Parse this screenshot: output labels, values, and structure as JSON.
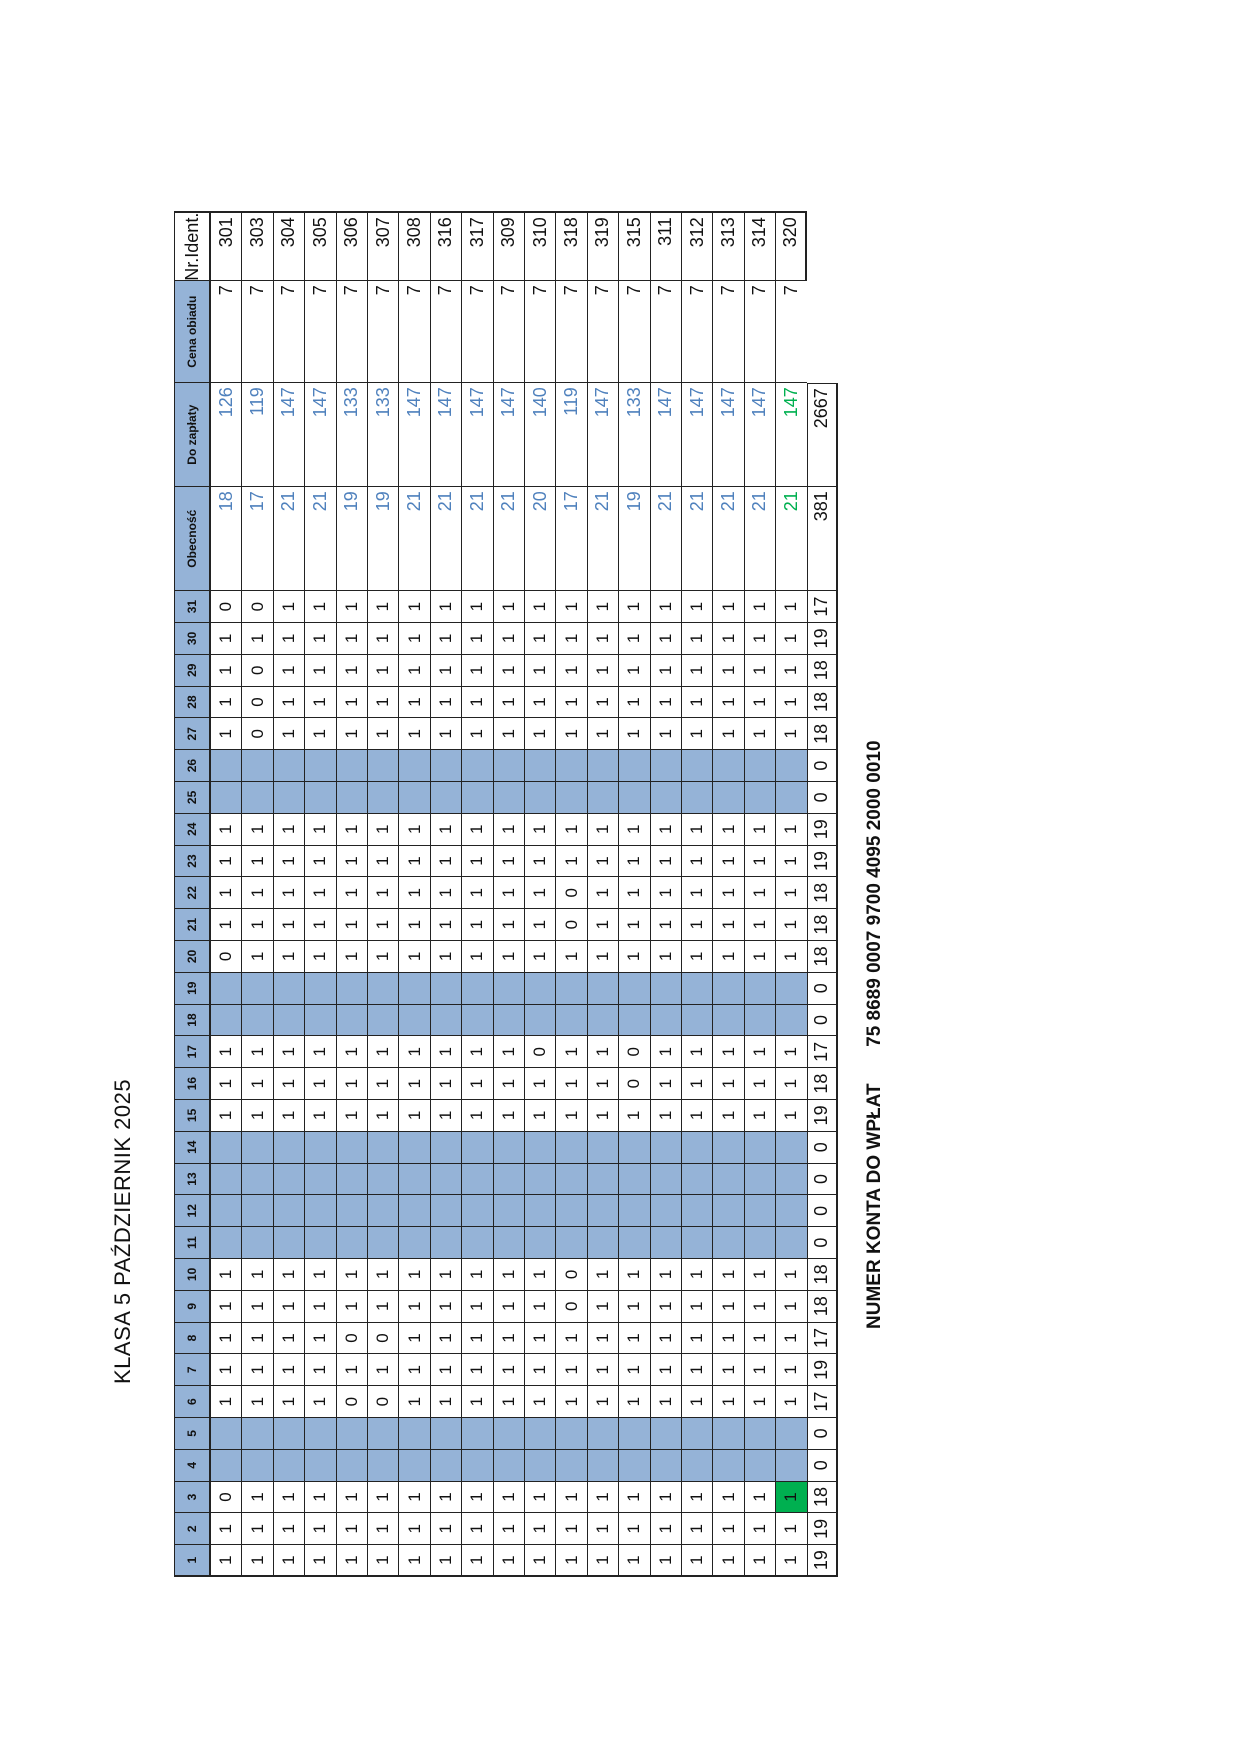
{
  "document": {
    "title": "KLASA 5 PAŹDZIERNIK 2025",
    "account_label": "NUMER KONTA  DO WPŁAT",
    "account_number": "75 8689 0007 9700 4095 2000 0010"
  },
  "table": {
    "day_headers": [
      "1",
      "2",
      "3",
      "4",
      "5",
      "6",
      "7",
      "8",
      "9",
      "10",
      "11",
      "12",
      "13",
      "14",
      "15",
      "16",
      "17",
      "18",
      "19",
      "20",
      "21",
      "22",
      "23",
      "24",
      "25",
      "26",
      "27",
      "28",
      "29",
      "30",
      "31"
    ],
    "extra_headers": {
      "attendance": "Obecność",
      "to_pay": "Do zapłaty",
      "meal_price": "Cena obiadu",
      "id": "Nr.Ident."
    },
    "weekend_days": [
      4,
      5,
      11,
      12,
      13,
      14,
      18,
      19,
      25,
      26
    ],
    "header_color": "#95b3d7",
    "weekend_color": "#95b3d7",
    "highlight_green": "#00b050",
    "value_blue": "#4f81bd",
    "value_green": "#00b050",
    "rows": [
      {
        "days": [
          "1",
          "1",
          "0",
          "",
          "",
          "1",
          "1",
          "1",
          "1",
          "1",
          "",
          "",
          "",
          "",
          "1",
          "1",
          "1",
          "",
          "",
          "0",
          "1",
          "1",
          "1",
          "1",
          "",
          "",
          "1",
          "1",
          "1",
          "1",
          "0"
        ],
        "attendance": "18",
        "to_pay": "126",
        "meal_price": "7",
        "id": "301"
      },
      {
        "days": [
          "1",
          "1",
          "1",
          "",
          "",
          "1",
          "1",
          "1",
          "1",
          "1",
          "",
          "",
          "",
          "",
          "1",
          "1",
          "1",
          "",
          "",
          "1",
          "1",
          "1",
          "1",
          "1",
          "",
          "",
          "0",
          "0",
          "0",
          "1",
          "0"
        ],
        "attendance": "17",
        "to_pay": "119",
        "meal_price": "7",
        "id": "303"
      },
      {
        "days": [
          "1",
          "1",
          "1",
          "",
          "",
          "1",
          "1",
          "1",
          "1",
          "1",
          "",
          "",
          "",
          "",
          "1",
          "1",
          "1",
          "",
          "",
          "1",
          "1",
          "1",
          "1",
          "1",
          "",
          "",
          "1",
          "1",
          "1",
          "1",
          "1"
        ],
        "attendance": "21",
        "to_pay": "147",
        "meal_price": "7",
        "id": "304"
      },
      {
        "days": [
          "1",
          "1",
          "1",
          "",
          "",
          "1",
          "1",
          "1",
          "1",
          "1",
          "",
          "",
          "",
          "",
          "1",
          "1",
          "1",
          "",
          "",
          "1",
          "1",
          "1",
          "1",
          "1",
          "",
          "",
          "1",
          "1",
          "1",
          "1",
          "1"
        ],
        "attendance": "21",
        "to_pay": "147",
        "meal_price": "7",
        "id": "305"
      },
      {
        "days": [
          "1",
          "1",
          "1",
          "",
          "",
          "0",
          "1",
          "0",
          "1",
          "1",
          "",
          "",
          "",
          "",
          "1",
          "1",
          "1",
          "",
          "",
          "1",
          "1",
          "1",
          "1",
          "1",
          "",
          "",
          "1",
          "1",
          "1",
          "1",
          "1"
        ],
        "attendance": "19",
        "to_pay": "133",
        "meal_price": "7",
        "id": "306"
      },
      {
        "days": [
          "1",
          "1",
          "1",
          "",
          "",
          "0",
          "1",
          "0",
          "1",
          "1",
          "",
          "",
          "",
          "",
          "1",
          "1",
          "1",
          "",
          "",
          "1",
          "1",
          "1",
          "1",
          "1",
          "",
          "",
          "1",
          "1",
          "1",
          "1",
          "1"
        ],
        "attendance": "19",
        "to_pay": "133",
        "meal_price": "7",
        "id": "307"
      },
      {
        "days": [
          "1",
          "1",
          "1",
          "",
          "",
          "1",
          "1",
          "1",
          "1",
          "1",
          "",
          "",
          "",
          "",
          "1",
          "1",
          "1",
          "",
          "",
          "1",
          "1",
          "1",
          "1",
          "1",
          "",
          "",
          "1",
          "1",
          "1",
          "1",
          "1"
        ],
        "attendance": "21",
        "to_pay": "147",
        "meal_price": "7",
        "id": "308"
      },
      {
        "days": [
          "1",
          "1",
          "1",
          "",
          "",
          "1",
          "1",
          "1",
          "1",
          "1",
          "",
          "",
          "",
          "",
          "1",
          "1",
          "1",
          "",
          "",
          "1",
          "1",
          "1",
          "1",
          "1",
          "",
          "",
          "1",
          "1",
          "1",
          "1",
          "1"
        ],
        "attendance": "21",
        "to_pay": "147",
        "meal_price": "7",
        "id": "316"
      },
      {
        "days": [
          "1",
          "1",
          "1",
          "",
          "",
          "1",
          "1",
          "1",
          "1",
          "1",
          "",
          "",
          "",
          "",
          "1",
          "1",
          "1",
          "",
          "",
          "1",
          "1",
          "1",
          "1",
          "1",
          "",
          "",
          "1",
          "1",
          "1",
          "1",
          "1"
        ],
        "attendance": "21",
        "to_pay": "147",
        "meal_price": "7",
        "id": "317"
      },
      {
        "days": [
          "1",
          "1",
          "1",
          "",
          "",
          "1",
          "1",
          "1",
          "1",
          "1",
          "",
          "",
          "",
          "",
          "1",
          "1",
          "1",
          "",
          "",
          "1",
          "1",
          "1",
          "1",
          "1",
          "",
          "",
          "1",
          "1",
          "1",
          "1",
          "1"
        ],
        "attendance": "21",
        "to_pay": "147",
        "meal_price": "7",
        "id": "309"
      },
      {
        "days": [
          "1",
          "1",
          "1",
          "",
          "",
          "1",
          "1",
          "1",
          "1",
          "1",
          "",
          "",
          "",
          "",
          "1",
          "1",
          "0",
          "",
          "",
          "1",
          "1",
          "1",
          "1",
          "1",
          "",
          "",
          "1",
          "1",
          "1",
          "1",
          "1"
        ],
        "attendance": "20",
        "to_pay": "140",
        "meal_price": "7",
        "id": "310"
      },
      {
        "days": [
          "1",
          "1",
          "1",
          "",
          "",
          "1",
          "1",
          "1",
          "0",
          "0",
          "",
          "",
          "",
          "",
          "1",
          "1",
          "1",
          "",
          "",
          "1",
          "0",
          "0",
          "1",
          "1",
          "",
          "",
          "1",
          "1",
          "1",
          "1",
          "1"
        ],
        "attendance": "17",
        "to_pay": "119",
        "meal_price": "7",
        "id": "318"
      },
      {
        "days": [
          "1",
          "1",
          "1",
          "",
          "",
          "1",
          "1",
          "1",
          "1",
          "1",
          "",
          "",
          "",
          "",
          "1",
          "1",
          "1",
          "",
          "",
          "1",
          "1",
          "1",
          "1",
          "1",
          "",
          "",
          "1",
          "1",
          "1",
          "1",
          "1"
        ],
        "attendance": "21",
        "to_pay": "147",
        "meal_price": "7",
        "id": "319"
      },
      {
        "days": [
          "1",
          "1",
          "1",
          "",
          "",
          "1",
          "1",
          "1",
          "1",
          "1",
          "",
          "",
          "",
          "",
          "1",
          "0",
          "0",
          "",
          "",
          "1",
          "1",
          "1",
          "1",
          "1",
          "",
          "",
          "1",
          "1",
          "1",
          "1",
          "1"
        ],
        "attendance": "19",
        "to_pay": "133",
        "meal_price": "7",
        "id": "315"
      },
      {
        "days": [
          "1",
          "1",
          "1",
          "",
          "",
          "1",
          "1",
          "1",
          "1",
          "1",
          "",
          "",
          "",
          "",
          "1",
          "1",
          "1",
          "",
          "",
          "1",
          "1",
          "1",
          "1",
          "1",
          "",
          "",
          "1",
          "1",
          "1",
          "1",
          "1"
        ],
        "attendance": "21",
        "to_pay": "147",
        "meal_price": "7",
        "id": "311"
      },
      {
        "days": [
          "1",
          "1",
          "1",
          "",
          "",
          "1",
          "1",
          "1",
          "1",
          "1",
          "",
          "",
          "",
          "",
          "1",
          "1",
          "1",
          "",
          "",
          "1",
          "1",
          "1",
          "1",
          "1",
          "",
          "",
          "1",
          "1",
          "1",
          "1",
          "1"
        ],
        "attendance": "21",
        "to_pay": "147",
        "meal_price": "7",
        "id": "312"
      },
      {
        "days": [
          "1",
          "1",
          "1",
          "",
          "",
          "1",
          "1",
          "1",
          "1",
          "1",
          "",
          "",
          "",
          "",
          "1",
          "1",
          "1",
          "",
          "",
          "1",
          "1",
          "1",
          "1",
          "1",
          "",
          "",
          "1",
          "1",
          "1",
          "1",
          "1"
        ],
        "attendance": "21",
        "to_pay": "147",
        "meal_price": "7",
        "id": "313"
      },
      {
        "days": [
          "1",
          "1",
          "1",
          "",
          "",
          "1",
          "1",
          "1",
          "1",
          "1",
          "",
          "",
          "",
          "",
          "1",
          "1",
          "1",
          "",
          "",
          "1",
          "1",
          "1",
          "1",
          "1",
          "",
          "",
          "1",
          "1",
          "1",
          "1",
          "1"
        ],
        "attendance": "21",
        "to_pay": "147",
        "meal_price": "7",
        "id": "314"
      },
      {
        "days": [
          "1",
          "1",
          "1",
          "",
          "",
          "1",
          "1",
          "1",
          "1",
          "1",
          "",
          "",
          "",
          "",
          "1",
          "1",
          "1",
          "",
          "",
          "1",
          "1",
          "1",
          "1",
          "1",
          "",
          "",
          "1",
          "1",
          "1",
          "1",
          "1"
        ],
        "attendance": "21",
        "to_pay": "147",
        "meal_price": "7",
        "id": "320",
        "highlight_day": 3,
        "green_values": true
      }
    ],
    "totals": {
      "days": [
        "19",
        "19",
        "18",
        "0",
        "0",
        "17",
        "19",
        "17",
        "18",
        "18",
        "0",
        "0",
        "0",
        "0",
        "19",
        "18",
        "17",
        "0",
        "0",
        "18",
        "18",
        "18",
        "19",
        "19",
        "0",
        "0",
        "18",
        "18",
        "18",
        "19",
        "17"
      ],
      "attendance": "381",
      "to_pay": "2667"
    }
  }
}
